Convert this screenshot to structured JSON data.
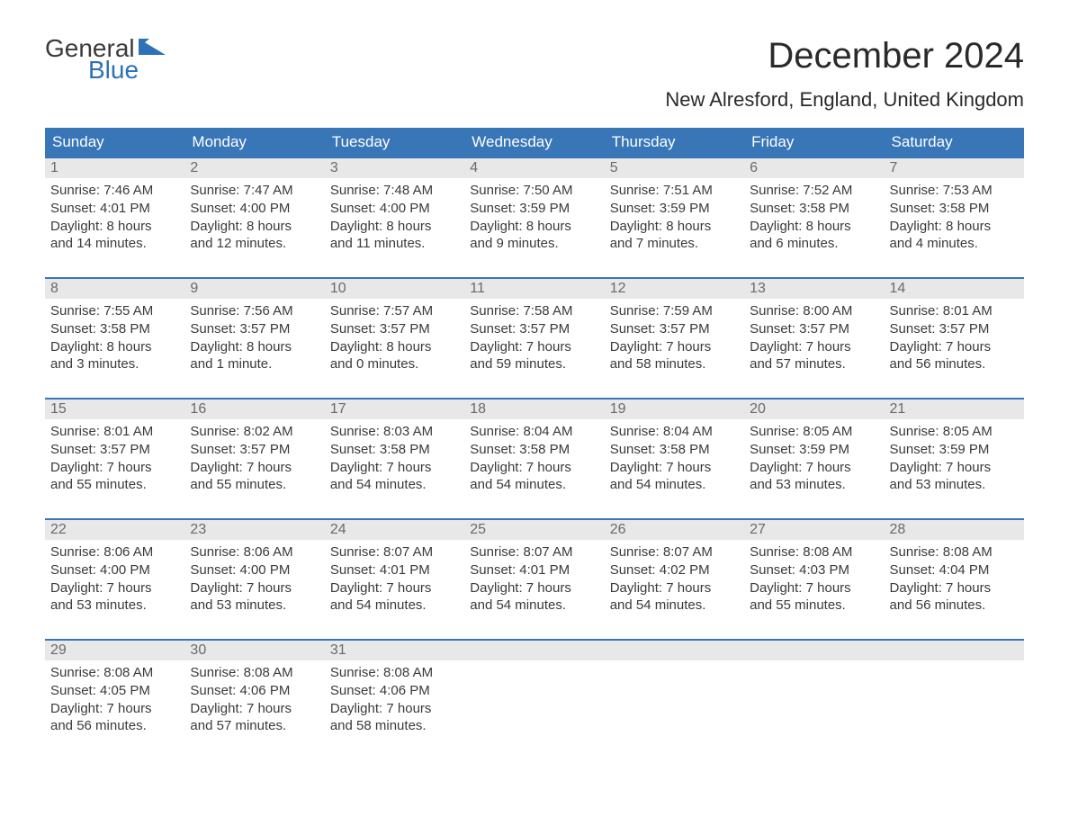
{
  "brand": {
    "word1": "General",
    "word2": "Blue",
    "accent_color": "#2d71b8"
  },
  "title": "December 2024",
  "subtitle": "New Alresford, England, United Kingdom",
  "colors": {
    "header_bg": "#3876b8",
    "header_text": "#ffffff",
    "daynum_bg": "#e8e8e8",
    "daynum_text": "#6a6a6a",
    "body_text": "#3a3a3a",
    "week_border": "#3876b8",
    "page_bg": "#ffffff"
  },
  "fontsize": {
    "title": 40,
    "subtitle": 22,
    "dayhead": 17,
    "daynum": 16,
    "body": 15
  },
  "day_headers": [
    "Sunday",
    "Monday",
    "Tuesday",
    "Wednesday",
    "Thursday",
    "Friday",
    "Saturday"
  ],
  "weeks": [
    [
      {
        "n": "1",
        "sr": "Sunrise: 7:46 AM",
        "ss": "Sunset: 4:01 PM",
        "d1": "Daylight: 8 hours",
        "d2": "and 14 minutes."
      },
      {
        "n": "2",
        "sr": "Sunrise: 7:47 AM",
        "ss": "Sunset: 4:00 PM",
        "d1": "Daylight: 8 hours",
        "d2": "and 12 minutes."
      },
      {
        "n": "3",
        "sr": "Sunrise: 7:48 AM",
        "ss": "Sunset: 4:00 PM",
        "d1": "Daylight: 8 hours",
        "d2": "and 11 minutes."
      },
      {
        "n": "4",
        "sr": "Sunrise: 7:50 AM",
        "ss": "Sunset: 3:59 PM",
        "d1": "Daylight: 8 hours",
        "d2": "and 9 minutes."
      },
      {
        "n": "5",
        "sr": "Sunrise: 7:51 AM",
        "ss": "Sunset: 3:59 PM",
        "d1": "Daylight: 8 hours",
        "d2": "and 7 minutes."
      },
      {
        "n": "6",
        "sr": "Sunrise: 7:52 AM",
        "ss": "Sunset: 3:58 PM",
        "d1": "Daylight: 8 hours",
        "d2": "and 6 minutes."
      },
      {
        "n": "7",
        "sr": "Sunrise: 7:53 AM",
        "ss": "Sunset: 3:58 PM",
        "d1": "Daylight: 8 hours",
        "d2": "and 4 minutes."
      }
    ],
    [
      {
        "n": "8",
        "sr": "Sunrise: 7:55 AM",
        "ss": "Sunset: 3:58 PM",
        "d1": "Daylight: 8 hours",
        "d2": "and 3 minutes."
      },
      {
        "n": "9",
        "sr": "Sunrise: 7:56 AM",
        "ss": "Sunset: 3:57 PM",
        "d1": "Daylight: 8 hours",
        "d2": "and 1 minute."
      },
      {
        "n": "10",
        "sr": "Sunrise: 7:57 AM",
        "ss": "Sunset: 3:57 PM",
        "d1": "Daylight: 8 hours",
        "d2": "and 0 minutes."
      },
      {
        "n": "11",
        "sr": "Sunrise: 7:58 AM",
        "ss": "Sunset: 3:57 PM",
        "d1": "Daylight: 7 hours",
        "d2": "and 59 minutes."
      },
      {
        "n": "12",
        "sr": "Sunrise: 7:59 AM",
        "ss": "Sunset: 3:57 PM",
        "d1": "Daylight: 7 hours",
        "d2": "and 58 minutes."
      },
      {
        "n": "13",
        "sr": "Sunrise: 8:00 AM",
        "ss": "Sunset: 3:57 PM",
        "d1": "Daylight: 7 hours",
        "d2": "and 57 minutes."
      },
      {
        "n": "14",
        "sr": "Sunrise: 8:01 AM",
        "ss": "Sunset: 3:57 PM",
        "d1": "Daylight: 7 hours",
        "d2": "and 56 minutes."
      }
    ],
    [
      {
        "n": "15",
        "sr": "Sunrise: 8:01 AM",
        "ss": "Sunset: 3:57 PM",
        "d1": "Daylight: 7 hours",
        "d2": "and 55 minutes."
      },
      {
        "n": "16",
        "sr": "Sunrise: 8:02 AM",
        "ss": "Sunset: 3:57 PM",
        "d1": "Daylight: 7 hours",
        "d2": "and 55 minutes."
      },
      {
        "n": "17",
        "sr": "Sunrise: 8:03 AM",
        "ss": "Sunset: 3:58 PM",
        "d1": "Daylight: 7 hours",
        "d2": "and 54 minutes."
      },
      {
        "n": "18",
        "sr": "Sunrise: 8:04 AM",
        "ss": "Sunset: 3:58 PM",
        "d1": "Daylight: 7 hours",
        "d2": "and 54 minutes."
      },
      {
        "n": "19",
        "sr": "Sunrise: 8:04 AM",
        "ss": "Sunset: 3:58 PM",
        "d1": "Daylight: 7 hours",
        "d2": "and 54 minutes."
      },
      {
        "n": "20",
        "sr": "Sunrise: 8:05 AM",
        "ss": "Sunset: 3:59 PM",
        "d1": "Daylight: 7 hours",
        "d2": "and 53 minutes."
      },
      {
        "n": "21",
        "sr": "Sunrise: 8:05 AM",
        "ss": "Sunset: 3:59 PM",
        "d1": "Daylight: 7 hours",
        "d2": "and 53 minutes."
      }
    ],
    [
      {
        "n": "22",
        "sr": "Sunrise: 8:06 AM",
        "ss": "Sunset: 4:00 PM",
        "d1": "Daylight: 7 hours",
        "d2": "and 53 minutes."
      },
      {
        "n": "23",
        "sr": "Sunrise: 8:06 AM",
        "ss": "Sunset: 4:00 PM",
        "d1": "Daylight: 7 hours",
        "d2": "and 53 minutes."
      },
      {
        "n": "24",
        "sr": "Sunrise: 8:07 AM",
        "ss": "Sunset: 4:01 PM",
        "d1": "Daylight: 7 hours",
        "d2": "and 54 minutes."
      },
      {
        "n": "25",
        "sr": "Sunrise: 8:07 AM",
        "ss": "Sunset: 4:01 PM",
        "d1": "Daylight: 7 hours",
        "d2": "and 54 minutes."
      },
      {
        "n": "26",
        "sr": "Sunrise: 8:07 AM",
        "ss": "Sunset: 4:02 PM",
        "d1": "Daylight: 7 hours",
        "d2": "and 54 minutes."
      },
      {
        "n": "27",
        "sr": "Sunrise: 8:08 AM",
        "ss": "Sunset: 4:03 PM",
        "d1": "Daylight: 7 hours",
        "d2": "and 55 minutes."
      },
      {
        "n": "28",
        "sr": "Sunrise: 8:08 AM",
        "ss": "Sunset: 4:04 PM",
        "d1": "Daylight: 7 hours",
        "d2": "and 56 minutes."
      }
    ],
    [
      {
        "n": "29",
        "sr": "Sunrise: 8:08 AM",
        "ss": "Sunset: 4:05 PM",
        "d1": "Daylight: 7 hours",
        "d2": "and 56 minutes."
      },
      {
        "n": "30",
        "sr": "Sunrise: 8:08 AM",
        "ss": "Sunset: 4:06 PM",
        "d1": "Daylight: 7 hours",
        "d2": "and 57 minutes."
      },
      {
        "n": "31",
        "sr": "Sunrise: 8:08 AM",
        "ss": "Sunset: 4:06 PM",
        "d1": "Daylight: 7 hours",
        "d2": "and 58 minutes."
      },
      {
        "empty": true
      },
      {
        "empty": true
      },
      {
        "empty": true
      },
      {
        "empty": true
      }
    ]
  ]
}
